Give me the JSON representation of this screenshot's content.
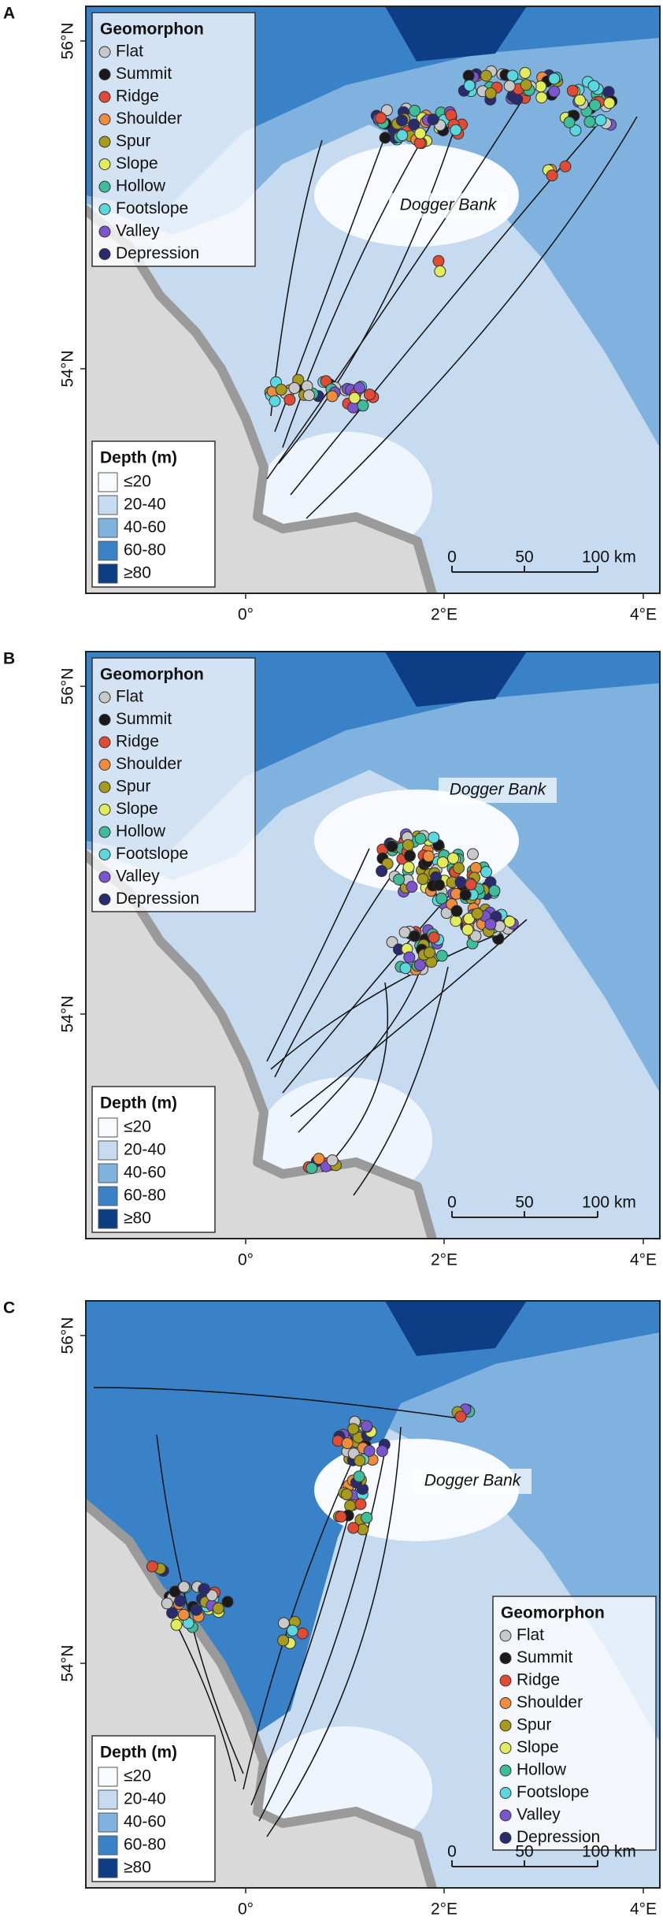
{
  "panels": [
    {
      "label": "A",
      "annotation": "Dogger Bank",
      "lat_ticks": [
        "56°N",
        "54°N"
      ],
      "lon_ticks": [
        "0°",
        "2°E",
        "4°E"
      ],
      "geomorphon_legend": {
        "title": "Geomorphon",
        "items": [
          {
            "name": "Flat",
            "color": "#c8c8c8"
          },
          {
            "name": "Summit",
            "color": "#1a1a1a"
          },
          {
            "name": "Ridge",
            "color": "#e34a33"
          },
          {
            "name": "Shoulder",
            "color": "#f08c3c"
          },
          {
            "name": "Spur",
            "color": "#a89a1a"
          },
          {
            "name": "Slope",
            "color": "#e0ec5a"
          },
          {
            "name": "Hollow",
            "color": "#3dbd9a"
          },
          {
            "name": "Footslope",
            "color": "#5ad8e0"
          },
          {
            "name": "Valley",
            "color": "#7b55d0"
          },
          {
            "name": "Depression",
            "color": "#2a2a6e"
          }
        ]
      },
      "depth_legend": {
        "title": "Depth (m)",
        "items": [
          {
            "name": "≤20",
            "color": "#f7fbff"
          },
          {
            "name": "20-40",
            "color": "#c6dbef"
          },
          {
            "name": "40-60",
            "color": "#7fb2de"
          },
          {
            "name": "60-80",
            "color": "#3a82c7"
          },
          {
            "name": "≥80",
            "color": "#0d3d85"
          }
        ]
      },
      "scale_bar": [
        "0",
        "50",
        "100 km"
      ]
    },
    {
      "label": "B",
      "annotation": "Dogger Bank",
      "lat_ticks": [
        "56°N",
        "54°N"
      ],
      "lon_ticks": [
        "0°",
        "2°E",
        "4°E"
      ],
      "geomorphon_legend": {
        "title": "Geomorphon",
        "items": [
          {
            "name": "Flat",
            "color": "#c8c8c8"
          },
          {
            "name": "Summit",
            "color": "#1a1a1a"
          },
          {
            "name": "Ridge",
            "color": "#e34a33"
          },
          {
            "name": "Shoulder",
            "color": "#f08c3c"
          },
          {
            "name": "Spur",
            "color": "#a89a1a"
          },
          {
            "name": "Slope",
            "color": "#e0ec5a"
          },
          {
            "name": "Hollow",
            "color": "#3dbd9a"
          },
          {
            "name": "Footslope",
            "color": "#5ad8e0"
          },
          {
            "name": "Valley",
            "color": "#7b55d0"
          },
          {
            "name": "Depression",
            "color": "#2a2a6e"
          }
        ]
      },
      "depth_legend": {
        "title": "Depth (m)",
        "items": [
          {
            "name": "≤20",
            "color": "#f7fbff"
          },
          {
            "name": "20-40",
            "color": "#c6dbef"
          },
          {
            "name": "40-60",
            "color": "#7fb2de"
          },
          {
            "name": "60-80",
            "color": "#3a82c7"
          },
          {
            "name": "≥80",
            "color": "#0d3d85"
          }
        ]
      },
      "scale_bar": [
        "0",
        "50",
        "100 km"
      ]
    },
    {
      "label": "C",
      "annotation": "Dogger Bank",
      "lat_ticks": [
        "56°N",
        "54°N"
      ],
      "lon_ticks": [
        "0°",
        "2°E",
        "4°E"
      ],
      "geomorphon_legend": {
        "title": "Geomorphon",
        "items": [
          {
            "name": "Flat",
            "color": "#c8c8c8"
          },
          {
            "name": "Summit",
            "color": "#1a1a1a"
          },
          {
            "name": "Ridge",
            "color": "#e34a33"
          },
          {
            "name": "Shoulder",
            "color": "#f08c3c"
          },
          {
            "name": "Spur",
            "color": "#a89a1a"
          },
          {
            "name": "Slope",
            "color": "#e0ec5a"
          },
          {
            "name": "Hollow",
            "color": "#3dbd9a"
          },
          {
            "name": "Footslope",
            "color": "#5ad8e0"
          },
          {
            "name": "Valley",
            "color": "#7b55d0"
          },
          {
            "name": "Depression",
            "color": "#2a2a6e"
          }
        ]
      },
      "depth_legend": {
        "title": "Depth (m)",
        "items": [
          {
            "name": "≤20",
            "color": "#f7fbff"
          },
          {
            "name": "20-40",
            "color": "#c6dbef"
          },
          {
            "name": "40-60",
            "color": "#7fb2de"
          },
          {
            "name": "60-80",
            "color": "#3a82c7"
          },
          {
            "name": "≥80",
            "color": "#0d3d85"
          }
        ]
      },
      "scale_bar": [
        "0",
        "50",
        "100 km"
      ]
    }
  ]
}
